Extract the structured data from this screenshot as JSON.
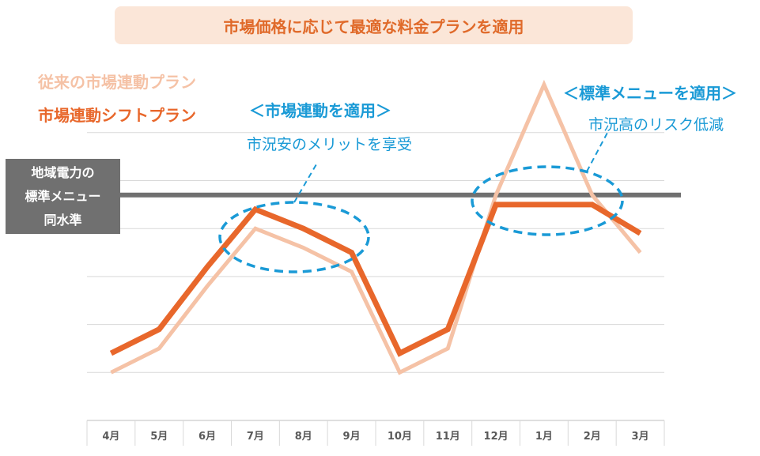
{
  "banner": {
    "text": "市場価格に応じて最適な料金プランを適用"
  },
  "legend": {
    "old_label": "従来の市場連動プラン",
    "new_label": "市場連動シフトプラン"
  },
  "standard_box": {
    "lines": [
      "地域電力の",
      "標準メニュー",
      "同水準"
    ]
  },
  "annotations": {
    "left": {
      "title": "＜市場連動を適用＞",
      "subtitle": "市況安のメリットを享受"
    },
    "right": {
      "title": "＜標準メニューを適用＞",
      "subtitle": "市況高のリスク低減"
    }
  },
  "colors": {
    "old_series": "#f5c2a6",
    "new_series": "#e8672b",
    "standard_line": "#707070",
    "annotation": "#1a9ad6"
  },
  "chart_data": {
    "type": "line",
    "categories": [
      "4月",
      "5月",
      "6月",
      "7月",
      "8月",
      "9月",
      "10月",
      "11月",
      "12月",
      "1月",
      "2月",
      "3月"
    ],
    "ylim": [
      0,
      7
    ],
    "grid": true,
    "standard_level": 4.7,
    "series": [
      {
        "name": "従来の市場連動プラン",
        "values": [
          1.0,
          1.5,
          2.8,
          4.0,
          3.6,
          3.1,
          1.0,
          1.5,
          4.7,
          7.0,
          4.7,
          3.5
        ]
      },
      {
        "name": "市場連動シフトプラン",
        "values": [
          1.4,
          1.9,
          3.2,
          4.4,
          4.0,
          3.5,
          1.4,
          1.9,
          4.5,
          4.5,
          4.5,
          3.9
        ]
      }
    ]
  }
}
